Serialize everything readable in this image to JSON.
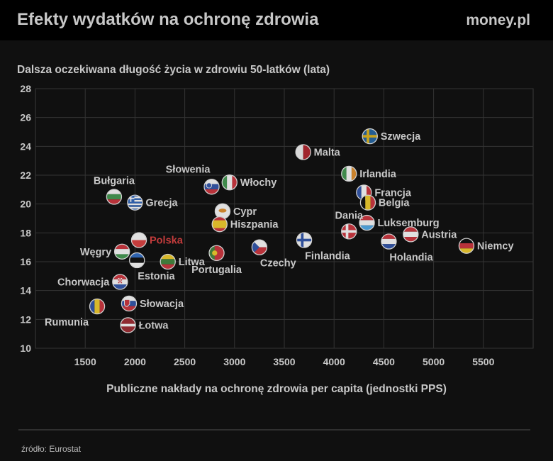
{
  "header": {
    "title": "Efekty wydatków na ochronę zdrowia",
    "brand": "money.pl"
  },
  "source": "źródło: Eurostat",
  "chart_data": {
    "type": "scatter",
    "title": "Dalsza oczekiwana długość życia w zdrowiu 50-latków (lata)",
    "xlabel": "Publiczne nakłady na ochronę zdrowia per capita (jednostki PPS)",
    "ylabel": "",
    "xlim": [
      1000,
      6000
    ],
    "ylim": [
      10,
      28
    ],
    "xticks": [
      1500,
      2000,
      2500,
      3000,
      3500,
      4000,
      4500,
      5000,
      5500
    ],
    "yticks": [
      10,
      12,
      14,
      16,
      18,
      20,
      22,
      24,
      26,
      28
    ],
    "grid": true,
    "highlight_color": "#c43c3c",
    "points": [
      {
        "label": "Szwecja",
        "x": 4360,
        "y": 24.7,
        "flag": "sweden",
        "pos": "right"
      },
      {
        "label": "Malta",
        "x": 3690,
        "y": 23.6,
        "flag": "malta",
        "pos": "right"
      },
      {
        "label": "Irlandia",
        "x": 4150,
        "y": 22.1,
        "flag": "ireland",
        "pos": "right"
      },
      {
        "label": "Włochy",
        "x": 2950,
        "y": 21.5,
        "flag": "italy",
        "pos": "right"
      },
      {
        "label": "Słowenia",
        "x": 2770,
        "y": 21.2,
        "flag": "slovenia",
        "pos": "above-left"
      },
      {
        "label": "Francja",
        "x": 4300,
        "y": 20.8,
        "flag": "france",
        "pos": "right"
      },
      {
        "label": "Bułgaria",
        "x": 1790,
        "y": 20.5,
        "flag": "bulgaria",
        "pos": "above"
      },
      {
        "label": "Belgia",
        "x": 4340,
        "y": 20.1,
        "flag": "belgium",
        "pos": "right"
      },
      {
        "label": "Grecja",
        "x": 2000,
        "y": 20.1,
        "flag": "greece",
        "pos": "right"
      },
      {
        "label": "Cypr",
        "x": 2880,
        "y": 19.5,
        "flag": "cyprus",
        "pos": "right"
      },
      {
        "label": "Luksemburg",
        "x": 4330,
        "y": 18.7,
        "flag": "luxembourg",
        "pos": "right"
      },
      {
        "label": "Hiszpania",
        "x": 2850,
        "y": 18.6,
        "flag": "spain",
        "pos": "right"
      },
      {
        "label": "Dania",
        "x": 4150,
        "y": 18.1,
        "flag": "denmark",
        "pos": "above"
      },
      {
        "label": "Austria",
        "x": 4770,
        "y": 17.9,
        "flag": "austria",
        "pos": "right"
      },
      {
        "label": "Polska",
        "x": 2040,
        "y": 17.5,
        "flag": "poland",
        "pos": "right",
        "highlight": true
      },
      {
        "label": "Finlandia",
        "x": 3700,
        "y": 17.5,
        "flag": "finland",
        "pos": "below-right"
      },
      {
        "label": "Holandia",
        "x": 4550,
        "y": 17.4,
        "flag": "netherlands",
        "pos": "below-right"
      },
      {
        "label": "Niemcy",
        "x": 5330,
        "y": 17.1,
        "flag": "germany",
        "pos": "right"
      },
      {
        "label": "Czechy",
        "x": 3250,
        "y": 17.0,
        "flag": "czechia",
        "pos": "below-right"
      },
      {
        "label": "Węgry",
        "x": 1870,
        "y": 16.7,
        "flag": "hungary",
        "pos": "left"
      },
      {
        "label": "Portugalia",
        "x": 2820,
        "y": 16.6,
        "flag": "portugal",
        "pos": "below"
      },
      {
        "label": "Estonia",
        "x": 2020,
        "y": 16.1,
        "flag": "estonia",
        "pos": "below-right"
      },
      {
        "label": "Litwa",
        "x": 2330,
        "y": 16.0,
        "flag": "lithuania",
        "pos": "right"
      },
      {
        "label": "Chorwacja",
        "x": 1850,
        "y": 14.6,
        "flag": "croatia",
        "pos": "left"
      },
      {
        "label": "Słowacja",
        "x": 1940,
        "y": 13.1,
        "flag": "slovakia",
        "pos": "right"
      },
      {
        "label": "Rumunia",
        "x": 1620,
        "y": 12.9,
        "flag": "romania",
        "pos": "below-left"
      },
      {
        "label": "Łotwa",
        "x": 1930,
        "y": 11.6,
        "flag": "latvia",
        "pos": "right"
      }
    ]
  }
}
